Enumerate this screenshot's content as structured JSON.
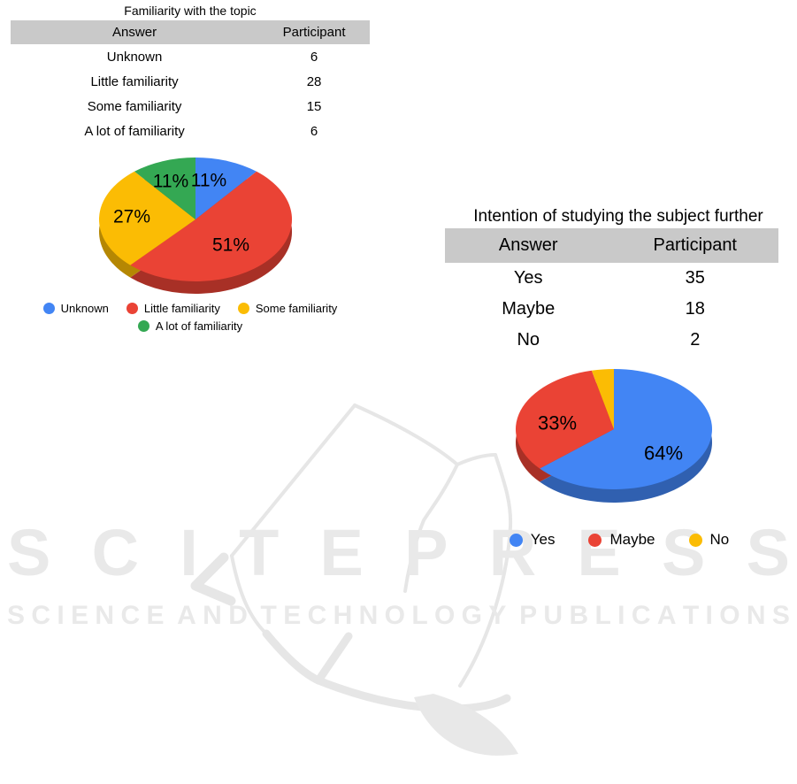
{
  "page": {
    "background": "#ffffff"
  },
  "watermark": {
    "logo_text": "SCITEPRESS",
    "tagline": "SCIENCE AND TECHNOLOGY PUBLICATIONS",
    "color": "#e9e9e9"
  },
  "tables": [
    {
      "title": "Familiarity with the topic",
      "headers": [
        "Answer",
        "Participant"
      ],
      "rows": [
        [
          "Unknown",
          "6"
        ],
        [
          "Little familiarity",
          "28"
        ],
        [
          "Some familiarity",
          "15"
        ],
        [
          "A lot of familiarity",
          "6"
        ]
      ],
      "header_bg": "#c9c9c9"
    },
    {
      "title": "Intention of studying the subject further",
      "headers": [
        "Answer",
        "Participant"
      ],
      "rows": [
        [
          "Yes",
          "35"
        ],
        [
          "Maybe",
          "18"
        ],
        [
          "No",
          "2"
        ]
      ],
      "header_bg": "#c9c9c9"
    }
  ],
  "chart_data": [
    {
      "type": "pie",
      "style": "3d",
      "title": "Familiarity with the topic",
      "labels": [
        "Unknown",
        "Little familiarity",
        "Some familiarity",
        "A lot of familiarity"
      ],
      "values": [
        6,
        28,
        15,
        6
      ],
      "percent_labels": [
        "11%",
        "51%",
        "27%",
        "11%"
      ],
      "colors": [
        "#4285F4",
        "#EA4335",
        "#FBBC04",
        "#34A853"
      ],
      "legend_position": "bottom",
      "legend_rows": [
        [
          "Unknown",
          "Little familiarity",
          "Some familiarity"
        ],
        [
          "A lot of familiarity"
        ]
      ]
    },
    {
      "type": "pie",
      "style": "3d",
      "title": "Intention of studying the subject further",
      "labels": [
        "Yes",
        "Maybe",
        "No"
      ],
      "values": [
        35,
        18,
        2
      ],
      "percent_labels": [
        "64%",
        "33%",
        ""
      ],
      "colors": [
        "#4285F4",
        "#EA4335",
        "#FBBC04"
      ],
      "legend_position": "bottom",
      "legend_rows": [
        [
          "Yes",
          "Maybe",
          "No"
        ]
      ]
    }
  ]
}
